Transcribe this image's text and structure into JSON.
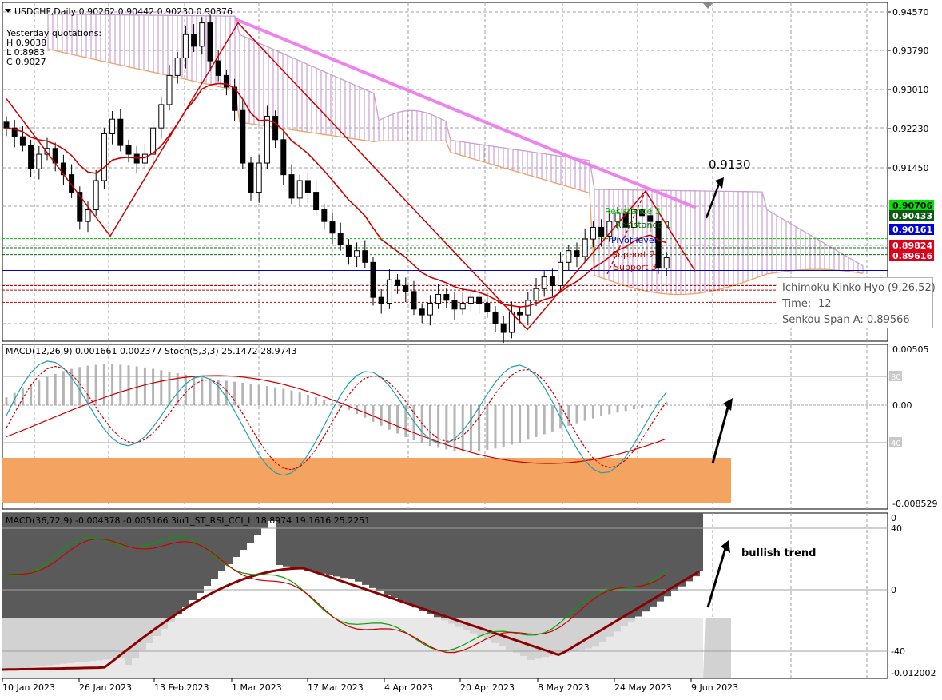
{
  "header": {
    "symbol_line": "USDCHF,Daily  0.90262 0.90442 0.90230 0.90376",
    "yesterday_title": "Yesterday quotations:",
    "yesterday_high": "H 0.9038",
    "yesterday_low": "L 0.8983",
    "yesterday_close": "C 0.9027"
  },
  "price_panel": {
    "y_ticks": [
      "0.94570",
      "0.93790",
      "0.93010",
      "0.92230",
      "0.91450"
    ],
    "price_badges": [
      {
        "value": "0.90706",
        "color": "#00e600",
        "text_color": "#000000"
      },
      {
        "value": "0.90433",
        "color": "#0a5a14",
        "text_color": "#ffffff"
      },
      {
        "value": "0.90161",
        "color": "#0000dd",
        "text_color": "#ffffff"
      },
      {
        "value": "0.89824",
        "color": "#dd0018",
        "text_color": "#ffffff"
      },
      {
        "value": "0.89616",
        "color": "#dd0018",
        "text_color": "#ffffff"
      }
    ],
    "level_labels": {
      "resistance_top": "Resistance 3",
      "resistance_1": "Resistance 1",
      "pivot": "Pivot level",
      "support_2": "Support 2",
      "support_3": "Support 3"
    },
    "target_label": "0.9130"
  },
  "tooltip": {
    "line1": "Ichimoku Kinko Hyo (9,26,52)",
    "line2": "Time: -12",
    "line3": "Senkou Span A: 0.89566"
  },
  "macd_panel": {
    "title": "MACD(12,26,9) 0.001661 0.002377  Stoch(5,3,3) 25.1472 28.9743",
    "y_top": "0.00505",
    "y_zero": "0.00",
    "y_bottom": "-0.008529",
    "stoch_80": "80",
    "stoch_40": "40"
  },
  "lower_panel": {
    "title": "MACD(36,72,9) -0.004378 -0.005166  3in1_ST_RSI_CCI_L 18.8974 19.1616 25.2251",
    "annotation": "bullish trend",
    "y_0_top": "0",
    "y_40": "40",
    "y_0": "0",
    "y_m40": "-40",
    "y_bottom": "-0.012002"
  },
  "x_axis": [
    "10 Jan 2023",
    "26 Jan 2023",
    "13 Feb 2023",
    "1 Mar 2023",
    "17 Mar 2023",
    "4 Apr 2023",
    "20 Apr 2023",
    "8 May 2023",
    "24 May 2023",
    "9 Jun 2023"
  ],
  "colors": {
    "bull_candle": "#ffffff",
    "bear_candle": "#000000",
    "ma_short": "#cc0000",
    "ma_long": "#ee82ee",
    "cloud": "#c8a0d2",
    "cloud_line": "#f0a060",
    "macd_hist": "#b4b4b4",
    "stoch_main": "#20a0b0",
    "stoch_signal": "#cc0000",
    "oversold_zone": "#f4a460",
    "lower_dark": "#5a5a5a",
    "lower_light": "#d2d2d2",
    "trend_line": "#8b0000"
  },
  "chart_data": {
    "type": "candlestick",
    "title": "USDCHF,Daily",
    "y_range": [
      0.8895,
      0.9475
    ],
    "x_labels": [
      "10 Jan 2023",
      "26 Jan 2023",
      "13 Feb 2023",
      "1 Mar 2023",
      "17 Mar 2023",
      "4 Apr 2023",
      "20 Apr 2023",
      "8 May 2023",
      "24 May 2023",
      "9 Jun 2023"
    ],
    "close_path": [
      0.926,
      0.9245,
      0.923,
      0.919,
      0.9215,
      0.9225,
      0.92,
      0.918,
      0.915,
      0.91,
      0.912,
      0.917,
      0.925,
      0.9275,
      0.923,
      0.9215,
      0.92,
      0.9215,
      0.926,
      0.93,
      0.935,
      0.938,
      0.942,
      0.94,
      0.944,
      0.9375,
      0.935,
      0.933,
      0.929,
      0.92,
      0.915,
      0.92,
      0.928,
      0.924,
      0.918,
      0.914,
      0.917,
      0.915,
      0.912,
      0.91,
      0.908,
      0.906,
      0.904,
      0.905,
      0.903,
      0.897,
      0.896,
      0.9,
      0.899,
      0.898,
      0.895,
      0.894,
      0.896,
      0.8975,
      0.8965,
      0.895,
      0.896,
      0.897,
      0.896,
      0.8945,
      0.8925,
      0.891,
      0.8945,
      0.894,
      0.8965,
      0.8985,
      0.9005,
      0.899,
      0.903,
      0.905,
      0.904,
      0.907,
      0.909,
      0.9075,
      0.91,
      0.9115,
      0.909,
      0.912,
      0.911,
      0.91,
      0.902,
      0.9038
    ],
    "levels": {
      "resistance_3": 0.90706,
      "resistance_1": 0.90433,
      "pivot": 0.90161,
      "support_2": 0.89824,
      "support_3": 0.89616
    },
    "target": 0.913
  }
}
